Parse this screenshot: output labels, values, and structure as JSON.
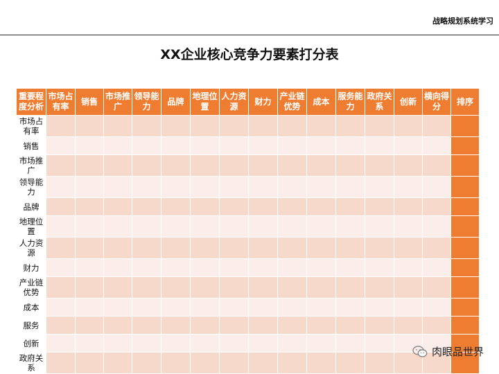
{
  "header": {
    "tag": "战略规划系统学习",
    "title": "XX企业核心竞争力要素打分表"
  },
  "table": {
    "corner": "重要程度分析",
    "columns": [
      "市场占有率",
      "销售",
      "市场推广",
      "领导能力",
      "品牌",
      "地理位置",
      "人力资源",
      "财力",
      "产业链优势",
      "成本",
      "服务能力",
      "政府关系",
      "创新",
      "横向得分",
      "排序"
    ],
    "rows": [
      "市场占有率",
      "销售",
      "市场推广",
      "领导能力",
      "品牌",
      "地理位置",
      "人力资源",
      "财力",
      "产业链优势",
      "成本",
      "服务",
      "创新",
      "政府关系"
    ]
  },
  "watermark": {
    "text": "肉眼品世界",
    "icon": "wechat-icon"
  },
  "colors": {
    "accent": "#ee7d31",
    "band_dark": "#f7d9cc",
    "band_light": "#fbedea"
  }
}
